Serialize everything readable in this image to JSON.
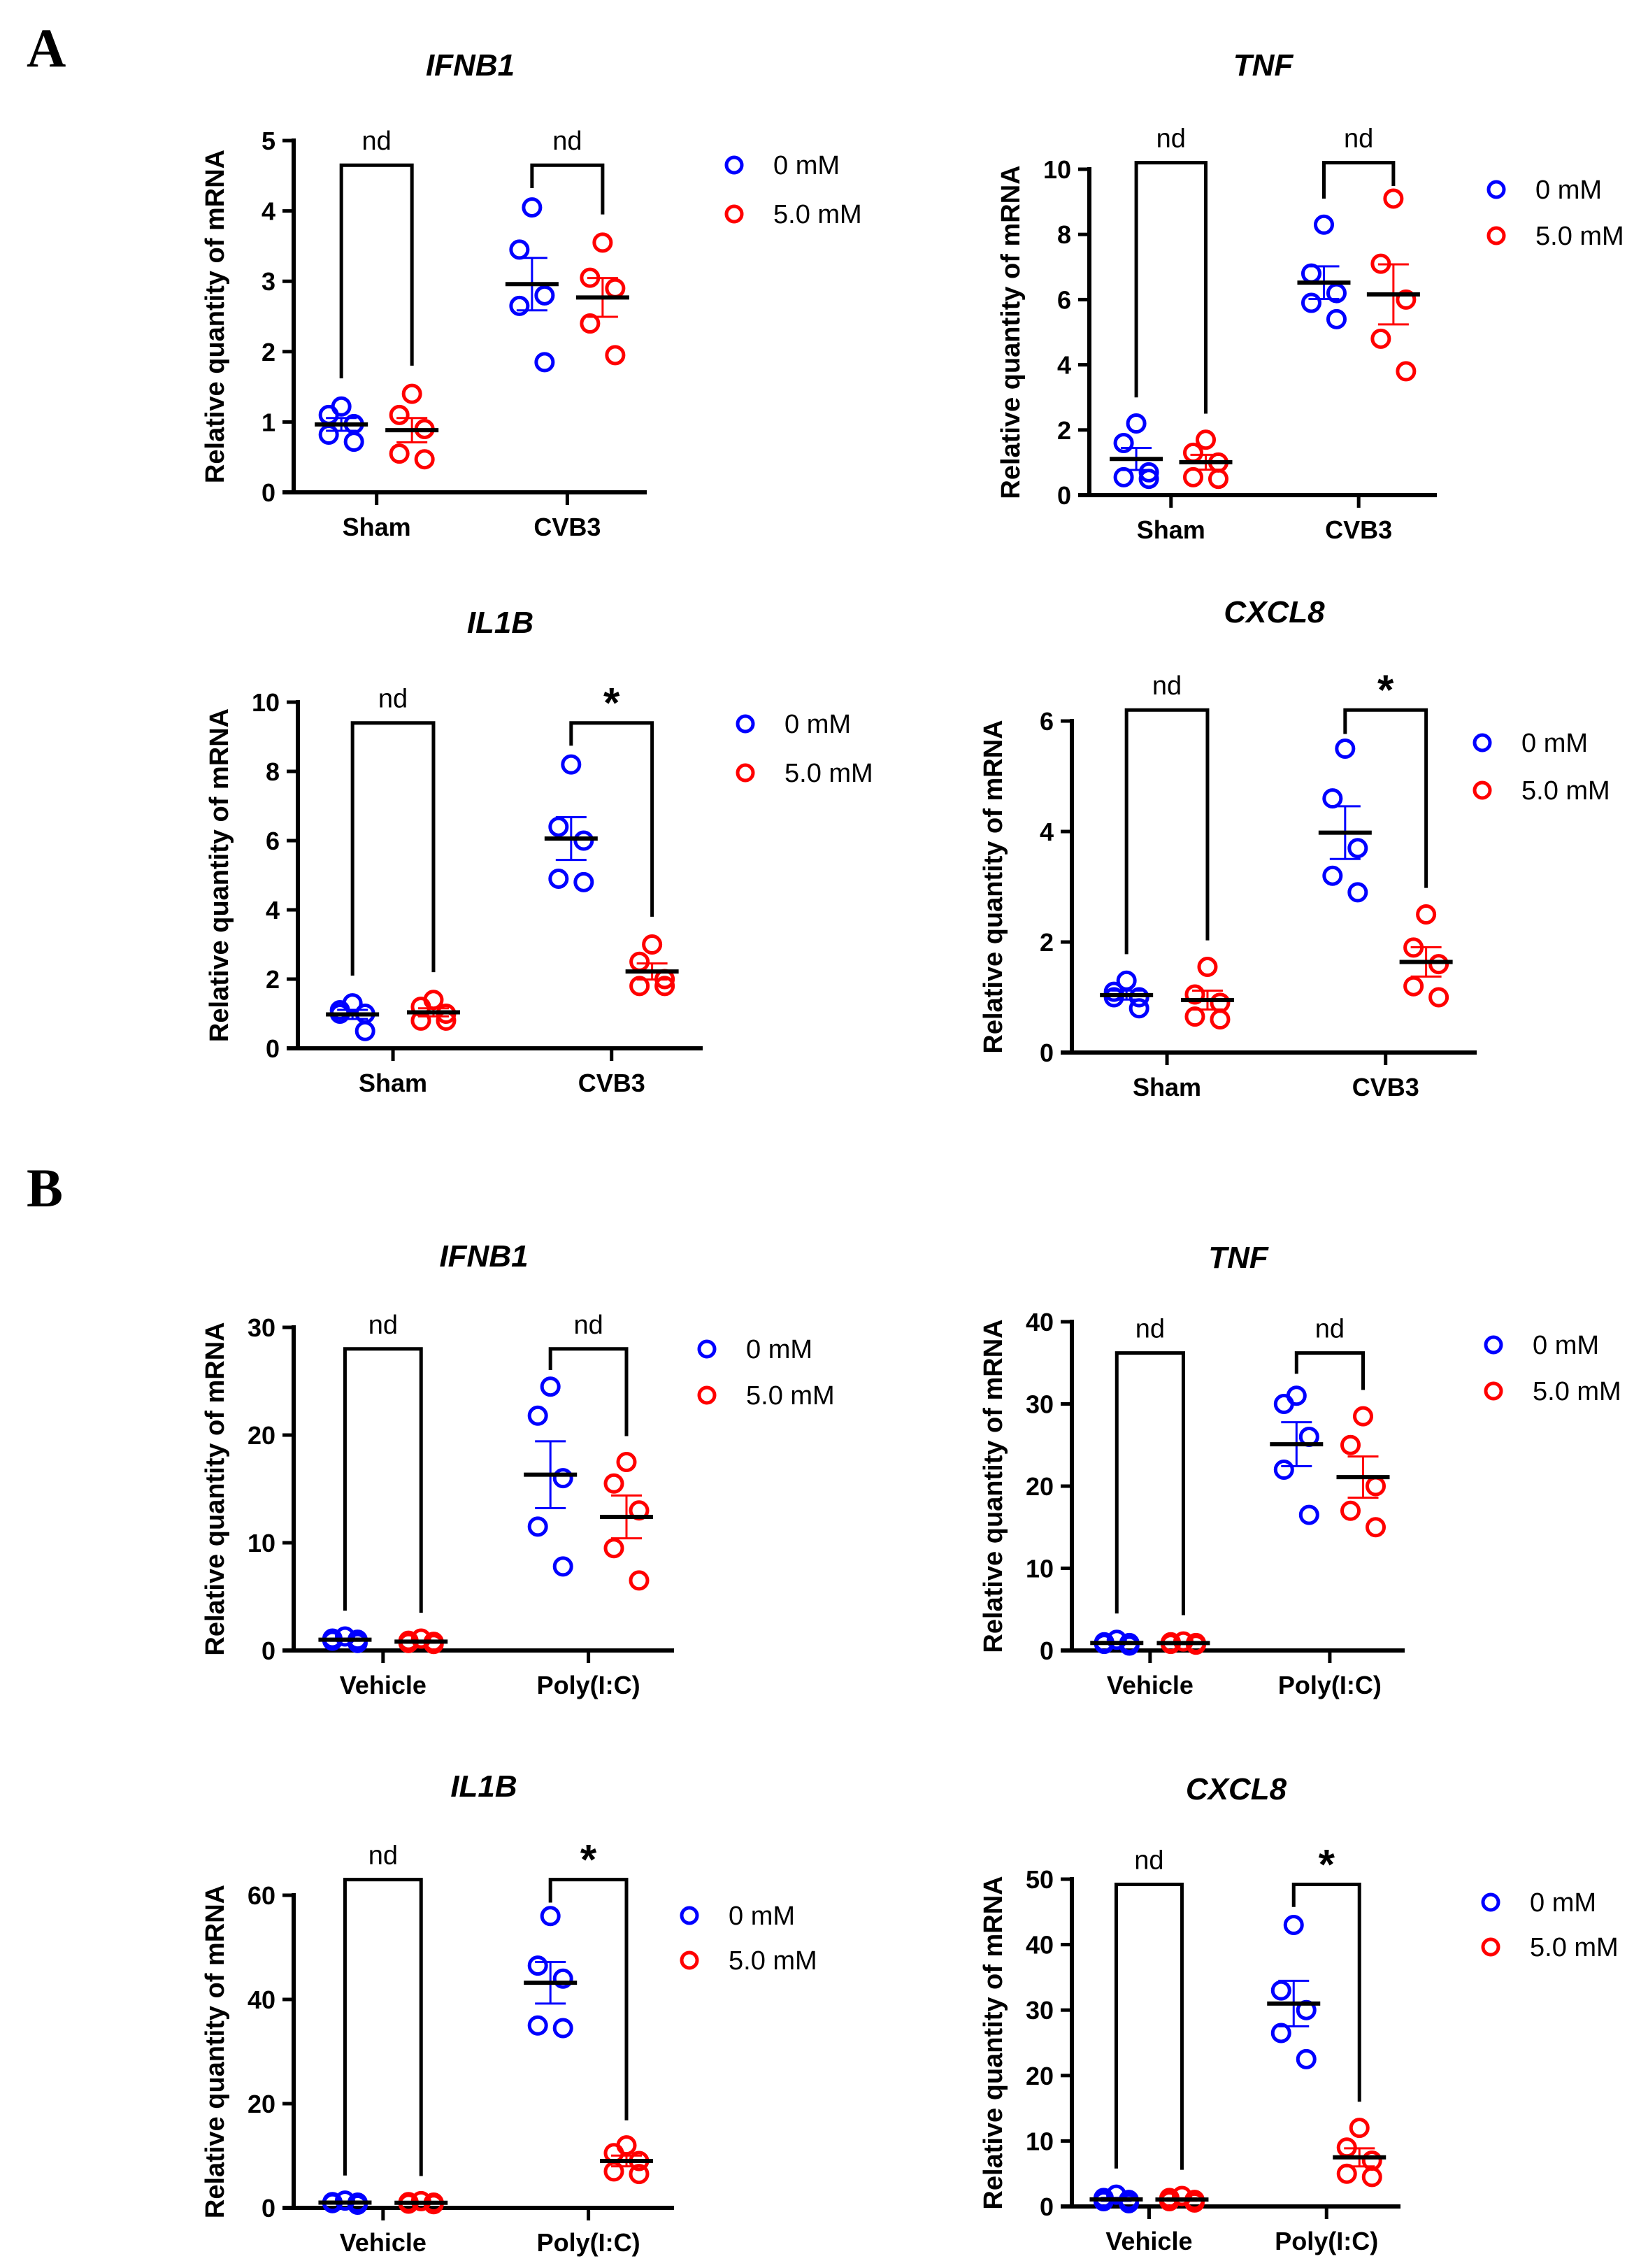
{
  "panel_labels": [
    "A",
    "B"
  ],
  "colors": {
    "group0": "#0000ff",
    "group1": "#ff0000",
    "mean": "#000000"
  },
  "chart_data": [
    {
      "type": "scatter",
      "panel": "A",
      "title": "IFNB1",
      "ylabel": "Relative quantity of mRNA",
      "ylim": [
        0,
        5
      ],
      "yticks": [
        0,
        1,
        2,
        3,
        4,
        5
      ],
      "categories": [
        "Sham",
        "CVB3"
      ],
      "legend": [
        "0 mM",
        "5.0 mM"
      ],
      "series": [
        {
          "name": "0 mM",
          "values": [
            [
              1.22,
              1.1,
              0.97,
              0.82,
              0.72
            ],
            [
              4.05,
              3.45,
              2.8,
              2.65,
              1.85
            ]
          ]
        },
        {
          "name": "5.0 mM",
          "values": [
            [
              1.4,
              1.1,
              0.9,
              0.55,
              0.47
            ],
            [
              3.55,
              3.05,
              2.9,
              2.4,
              1.95
            ]
          ]
        }
      ],
      "significance": [
        "nd",
        "nd"
      ],
      "bracket_top": 4.65
    },
    {
      "type": "scatter",
      "panel": "A",
      "title": "TNF",
      "ylabel": "Relative quantity of mRNA",
      "ylim": [
        0,
        10
      ],
      "yticks": [
        0,
        2,
        4,
        6,
        8,
        10
      ],
      "categories": [
        "Sham",
        "CVB3"
      ],
      "legend": [
        "0 mM",
        "5.0 mM"
      ],
      "series": [
        {
          "name": "0 mM",
          "values": [
            [
              2.2,
              1.6,
              0.7,
              0.55,
              0.5
            ],
            [
              8.3,
              6.8,
              6.2,
              5.9,
              5.4
            ]
          ]
        },
        {
          "name": "5.0 mM",
          "values": [
            [
              1.7,
              1.3,
              1.0,
              0.55,
              0.5
            ],
            [
              9.1,
              7.1,
              6.0,
              4.8,
              3.8
            ]
          ]
        }
      ],
      "significance": [
        "nd",
        "nd"
      ],
      "bracket_top": 10.2
    },
    {
      "type": "scatter",
      "panel": "A",
      "title": "IL1B",
      "ylabel": "Relative quantity of mRNA",
      "ylim": [
        0,
        10
      ],
      "yticks": [
        0,
        2,
        4,
        6,
        8,
        10
      ],
      "categories": [
        "Sham",
        "CVB3"
      ],
      "legend": [
        "0 mM",
        "5.0 mM"
      ],
      "series": [
        {
          "name": "0 mM",
          "values": [
            [
              1.3,
              1.1,
              1.0,
              1.0,
              0.5
            ],
            [
              8.2,
              6.4,
              6.0,
              4.9,
              4.8
            ]
          ]
        },
        {
          "name": "5.0 mM",
          "values": [
            [
              1.4,
              1.2,
              1.0,
              0.8,
              0.8
            ],
            [
              3.0,
              2.5,
              2.0,
              1.8,
              1.8
            ]
          ]
        }
      ],
      "significance": [
        "nd",
        "*"
      ],
      "bracket_top": 9.4
    },
    {
      "type": "scatter",
      "panel": "A",
      "title": "CXCL8",
      "ylabel": "Relative quantity of mRNA",
      "ylim": [
        0,
        6
      ],
      "yticks": [
        0,
        2,
        4,
        6
      ],
      "categories": [
        "Sham",
        "CVB3"
      ],
      "legend": [
        "0 mM",
        "5.0 mM"
      ],
      "series": [
        {
          "name": "0 mM",
          "values": [
            [
              1.3,
              1.1,
              1.0,
              1.0,
              0.8
            ],
            [
              5.5,
              4.6,
              3.7,
              3.2,
              2.9
            ]
          ]
        },
        {
          "name": "5.0 mM",
          "values": [
            [
              1.55,
              1.05,
              0.9,
              0.65,
              0.6
            ],
            [
              2.5,
              1.9,
              1.6,
              1.2,
              1.0
            ]
          ]
        }
      ],
      "significance": [
        "nd",
        "*"
      ],
      "bracket_top": 6.2
    },
    {
      "type": "scatter",
      "panel": "B",
      "title": "IFNB1",
      "ylabel": "Relative quantity of mRNA",
      "ylim": [
        0,
        30
      ],
      "yticks": [
        0,
        10,
        20,
        30
      ],
      "categories": [
        "Vehicle",
        "Poly(I:C)"
      ],
      "legend": [
        "0 mM",
        "5.0 mM"
      ],
      "series": [
        {
          "name": "0 mM",
          "values": [
            [
              1.3,
              1.1,
              1.0,
              0.9,
              0.7
            ],
            [
              24.5,
              21.8,
              16,
              11.5,
              7.8
            ]
          ]
        },
        {
          "name": "5.0 mM",
          "values": [
            [
              1.1,
              0.9,
              0.8,
              0.7,
              0.6
            ],
            [
              17.5,
              15.5,
              13,
              9.5,
              6.5
            ]
          ]
        }
      ],
      "significance": [
        "nd",
        "nd"
      ],
      "bracket_top": 28
    },
    {
      "type": "scatter",
      "panel": "B",
      "title": "TNF",
      "ylabel": "Relative quantity of mRNA",
      "ylim": [
        0,
        40
      ],
      "yticks": [
        0,
        10,
        20,
        30,
        40
      ],
      "categories": [
        "Vehicle",
        "Poly(I:C)"
      ],
      "legend": [
        "0 mM",
        "5.0 mM"
      ],
      "series": [
        {
          "name": "0 mM",
          "values": [
            [
              1.3,
              1.0,
              0.9,
              0.8,
              0.6
            ],
            [
              31,
              30,
              26,
              22,
              16.5
            ]
          ]
        },
        {
          "name": "5.0 mM",
          "values": [
            [
              1.1,
              1.0,
              0.9,
              0.8,
              0.7
            ],
            [
              28.5,
              25,
              20,
              17,
              15
            ]
          ]
        }
      ],
      "significance": [
        "nd",
        "nd"
      ],
      "bracket_top": 36.2
    },
    {
      "type": "scatter",
      "panel": "B",
      "title": "IL1B",
      "ylabel": "Relative quantity of mRNA",
      "ylim": [
        0,
        60
      ],
      "yticks": [
        0,
        20,
        40,
        60
      ],
      "categories": [
        "Vehicle",
        "Poly(I:C)"
      ],
      "legend": [
        "0 mM",
        "5.0 mM"
      ],
      "series": [
        {
          "name": "0 mM",
          "values": [
            [
              1.4,
              1.1,
              1.0,
              0.9,
              0.6
            ],
            [
              56,
              46.5,
              44,
              35,
              34.5
            ]
          ]
        },
        {
          "name": "5.0 mM",
          "values": [
            [
              1.3,
              1.1,
              1.0,
              0.8,
              0.7
            ],
            [
              12,
              10.5,
              9,
              7,
              6.5
            ]
          ]
        }
      ],
      "significance": [
        "nd",
        "*"
      ],
      "bracket_top": 63
    },
    {
      "type": "scatter",
      "panel": "B",
      "title": "CXCL8",
      "ylabel": "Relative quantity of mRNA",
      "ylim": [
        0,
        50
      ],
      "yticks": [
        0,
        10,
        20,
        30,
        40,
        50
      ],
      "categories": [
        "Vehicle",
        "Poly(I:C)"
      ],
      "legend": [
        "0 mM",
        "5.0 mM"
      ],
      "series": [
        {
          "name": "0 mM",
          "values": [
            [
              1.8,
              1.3,
              1.0,
              0.8,
              0.5
            ],
            [
              43,
              33,
              30,
              26.5,
              22.5
            ]
          ]
        },
        {
          "name": "5.0 mM",
          "values": [
            [
              1.6,
              1.3,
              1.0,
              0.8,
              0.6
            ],
            [
              12,
              9,
              7,
              5,
              4.5
            ]
          ]
        }
      ],
      "significance": [
        "nd",
        "*"
      ],
      "bracket_top": 49.2
    }
  ]
}
